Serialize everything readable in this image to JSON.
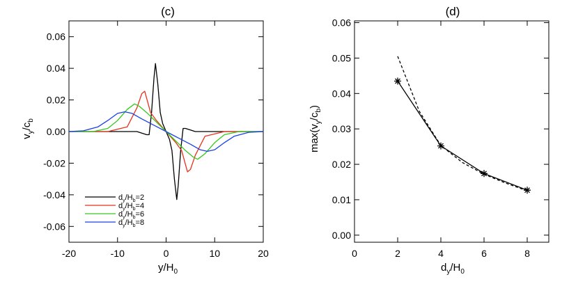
{
  "chart_data": [
    {
      "panel_label": "(c)",
      "type": "line",
      "xlim": [
        -20,
        20
      ],
      "ylim": [
        -0.07,
        0.07
      ],
      "xticks": [
        -20,
        -10,
        0,
        10,
        20
      ],
      "yticks": [
        -0.06,
        -0.04,
        -0.02,
        0.0,
        0.02,
        0.04,
        0.06
      ],
      "xtick_labels": [
        "-20",
        "-10",
        "0",
        "10",
        "20"
      ],
      "ytick_labels": [
        "-0.06",
        "-0.04",
        "-0.02",
        "0.00",
        "0.02",
        "0.04",
        "0.06"
      ],
      "xlabel": {
        "base": "y/H",
        "sub": "0"
      },
      "ylabel": {
        "base": "v",
        "sub1": "y",
        "mid": "/c",
        "sub2": "b"
      },
      "legend": {
        "placement": "bottom-left"
      },
      "series": [
        {
          "legend": {
            "d": "d",
            "sub1": "y",
            "mid": "/H",
            "sub2": "b",
            "tail": "=2"
          },
          "color": "#000000",
          "x": [
            -20,
            -10,
            -6,
            -4,
            -3.5,
            -3,
            -2.5,
            -2.2,
            -1.7,
            -1.2,
            -0.7,
            0,
            0.7,
            1.2,
            1.7,
            2.2,
            2.5,
            3,
            3.5,
            4,
            6,
            10,
            20
          ],
          "y": [
            0.0,
            0.0,
            0.0,
            -0.002,
            -0.002,
            0.012,
            0.034,
            0.043,
            0.03,
            0.012,
            0.005,
            0.0,
            -0.005,
            -0.012,
            -0.03,
            -0.043,
            -0.034,
            -0.012,
            0.002,
            0.002,
            0.0,
            0.0,
            0.0
          ]
        },
        {
          "legend": {
            "d": "d",
            "sub1": "y",
            "mid": "/H",
            "sub2": "b",
            "tail": "=4"
          },
          "color": "#e8311a",
          "x": [
            -20,
            -12,
            -8,
            -6,
            -5,
            -4.4,
            -4,
            -3.2,
            -2,
            0,
            2,
            3.2,
            4,
            4.4,
            5,
            6,
            8,
            12,
            20
          ],
          "y": [
            0.0,
            0.0,
            0.003,
            0.015,
            0.024,
            0.0255,
            0.021,
            0.012,
            0.007,
            0.0,
            -0.007,
            -0.012,
            -0.021,
            -0.0255,
            -0.024,
            -0.015,
            -0.003,
            0.0,
            0.0
          ],
          "_": "red"
        },
        {
          "legend": {
            "d": "d",
            "sub1": "y",
            "mid": "/H",
            "sub2": "b",
            "tail": "=6"
          },
          "color": "#36c81e",
          "x": [
            -20,
            -15,
            -12,
            -10,
            -8,
            -6.5,
            -5.5,
            -4,
            -2,
            0,
            2,
            4,
            5.5,
            6.5,
            8,
            10,
            12,
            15,
            20
          ],
          "y": [
            0.0,
            0.0,
            0.002,
            0.007,
            0.014,
            0.0175,
            0.016,
            0.012,
            0.006,
            0.0,
            -0.006,
            -0.012,
            -0.016,
            -0.0175,
            -0.014,
            -0.007,
            -0.002,
            0.0,
            0.0
          ]
        },
        {
          "legend": {
            "d": "d",
            "sub1": "y",
            "mid": "/H",
            "sub2": "b",
            "tail": "=8"
          },
          "color": "#1a3fe8",
          "x": [
            -20,
            -17,
            -14,
            -12,
            -10,
            -8.5,
            -7,
            -5,
            -2.5,
            0,
            2.5,
            5,
            7,
            8.5,
            10,
            12,
            14,
            17,
            20
          ],
          "y": [
            0.0,
            0.0005,
            0.003,
            0.007,
            0.0115,
            0.0125,
            0.0115,
            0.008,
            0.004,
            0.0,
            -0.004,
            -0.008,
            -0.0115,
            -0.0125,
            -0.0115,
            -0.007,
            -0.003,
            -0.0005,
            0.0
          ]
        }
      ]
    },
    {
      "panel_label": "(d)",
      "type": "line",
      "xlim": [
        0,
        9
      ],
      "ylim": [
        -0.002,
        0.0605
      ],
      "xticks": [
        0,
        2,
        4,
        6,
        8
      ],
      "yticks": [
        0.0,
        0.01,
        0.02,
        0.03,
        0.04,
        0.05,
        0.06
      ],
      "xtick_labels": [
        "0",
        "2",
        "4",
        "6",
        "8"
      ],
      "ytick_labels": [
        "0.00",
        "0.01",
        "0.02",
        "0.03",
        "0.04",
        "0.05",
        "0.06"
      ],
      "xlabel": {
        "base": "d",
        "sub1": "y",
        "mid": "/H",
        "sub2": "0"
      },
      "ylabel": {
        "base": "max(v",
        "sub1": "y",
        "mid": "/c",
        "sub2": "b",
        "tail": ")"
      },
      "series": [
        {
          "style": "solid-with-star-markers",
          "color": "#000000",
          "x": [
            2,
            4,
            6,
            8
          ],
          "y": [
            0.0435,
            0.0252,
            0.0174,
            0.0127
          ]
        },
        {
          "style": "dashed",
          "color": "#000000",
          "x": [
            2,
            3,
            4,
            5,
            6,
            7,
            8
          ],
          "y": [
            0.0505,
            0.035,
            0.0253,
            0.0205,
            0.0172,
            0.0147,
            0.0125
          ]
        }
      ]
    }
  ]
}
